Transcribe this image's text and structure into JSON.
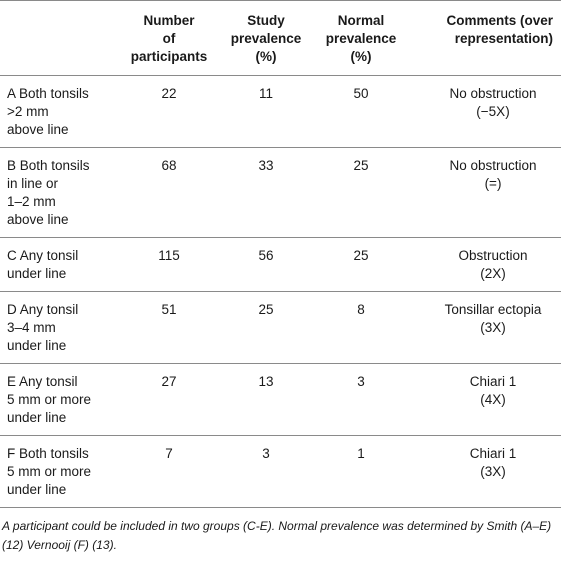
{
  "table": {
    "headers": [
      "",
      "Number\nof\nparticipants",
      "Study\nprevalence\n(%)",
      "Normal\nprevalence\n(%)",
      "Comments (over\nrepresentation)"
    ],
    "rows": [
      {
        "group": "A Both tonsils\n>2 mm\nabove line",
        "participants": "22",
        "study": "11",
        "normal": "50",
        "comment": "No obstruction\n(−5X)"
      },
      {
        "group": "B Both tonsils\nin line or\n1–2 mm\nabove line",
        "participants": "68",
        "study": "33",
        "normal": "25",
        "comment": "No obstruction\n(=)"
      },
      {
        "group": "C Any tonsil\nunder line",
        "participants": "115",
        "study": "56",
        "normal": "25",
        "comment": "Obstruction\n(2X)"
      },
      {
        "group": "D Any tonsil\n3–4 mm\nunder line",
        "participants": "51",
        "study": "25",
        "normal": "8",
        "comment": "Tonsillar ectopia\n(3X)"
      },
      {
        "group": "E Any tonsil\n5 mm or more\nunder line",
        "participants": "27",
        "study": "13",
        "normal": "3",
        "comment": "Chiari 1\n(4X)"
      },
      {
        "group": "F Both tonsils\n5 mm or more\nunder line",
        "participants": "7",
        "study": "3",
        "normal": "1",
        "comment": "Chiari 1\n(3X)"
      }
    ]
  },
  "footnote": "A participant could be included in two groups (C-E). Normal prevalence was determined by Smith (A–E) (12) Vernooij (F) (13)."
}
